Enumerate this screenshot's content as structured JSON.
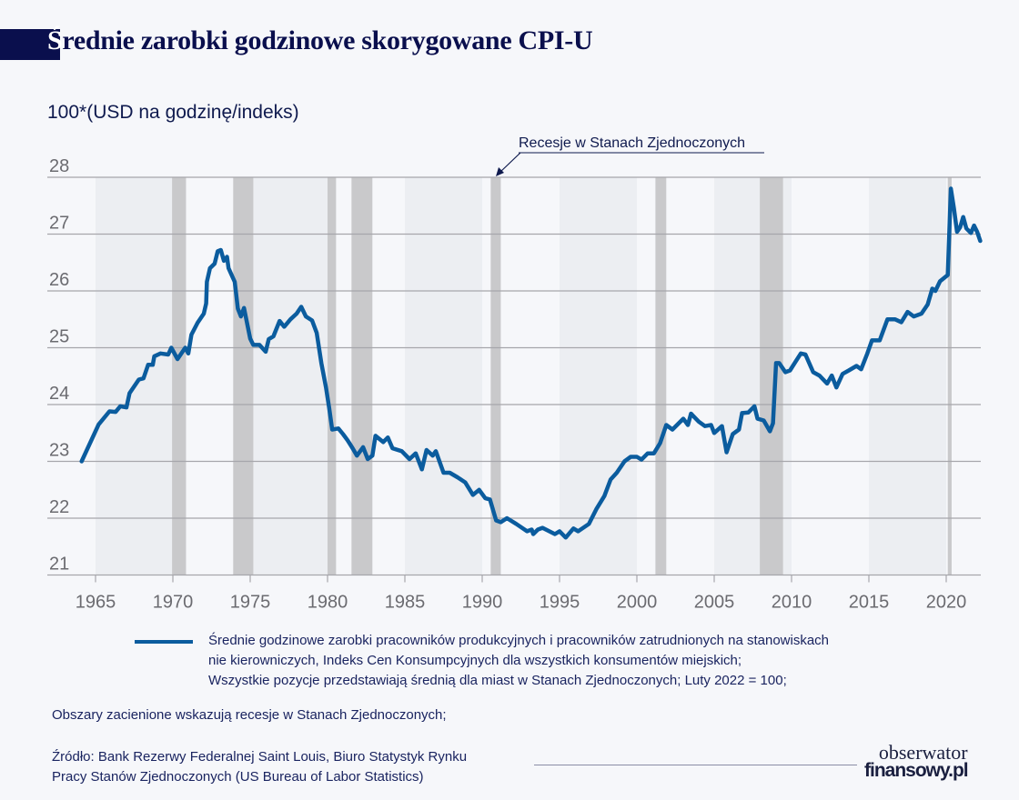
{
  "header": {
    "title_first": "Ś",
    "title_rest": "rednie zarobki godzinowe skorygowane CPI-U",
    "unit_label": "100*(USD na godzinę/indeks)"
  },
  "annotation": {
    "text": "Recesje w Stanach Zjednoczonych"
  },
  "legend": {
    "series_label_line1": "Średnie godzinowe zarobki pracowników produkcyjnych i pracowników zatrudnionych na stanowiskach",
    "series_label_line2": "nie kierowniczych, Indeks Cen Konsumpcyjnych  dla wszystkich konsumentów miejskich;",
    "series_label_line3": "Wszystkie pozycje przedstawiają średnią dla miast w Stanach Zjednoczonych; Luty 2022 = 100;"
  },
  "footer": {
    "note": "Obszary zacienione wskazują recesje w Stanach Zjednoczonych;",
    "source_line1": "Źródło: Bank Rezerwy Federalnej Saint Louis, Biuro Statystyk Rynku",
    "source_line2": "Pracy Stanów Zjednoczonych (US Bureau of Labor Statistics)",
    "logo_line1": "obserwator",
    "logo_line2": "finansowy.pl"
  },
  "colors": {
    "line": "#0b5c9e",
    "recession": "#c9c9cb",
    "band": "#eceef2",
    "title": "#0a0f4d"
  },
  "chart_data": {
    "type": "line",
    "title": "Średnie zarobki godzinowe skorygowane CPI-U",
    "ylabel": "100*(USD na godzinę/indeks)",
    "ylim": [
      21,
      28
    ],
    "yticks": [
      "21",
      "22",
      "23",
      "24",
      "25",
      "26",
      "27",
      "28"
    ],
    "xticks": [
      "1965",
      "1970",
      "1975",
      "1980",
      "1985",
      "1990",
      "1995",
      "2000",
      "2005",
      "2010",
      "2015",
      "2020"
    ],
    "grid": "horizontal",
    "recessions": [
      [
        1969.95,
        1970.85
      ],
      [
        1973.9,
        1975.2
      ],
      [
        1980.0,
        1980.55
      ],
      [
        1981.55,
        1982.9
      ],
      [
        1990.55,
        1991.2
      ],
      [
        2001.2,
        2001.9
      ],
      [
        2007.95,
        2009.45
      ],
      [
        2020.1,
        2020.35
      ]
    ],
    "series": [
      {
        "name": "Średnie godzinowe zarobki pracowników produkcyjnych i pracowników zatrudnionych na stanowiskach nie kierowniczych, Indeks Cen Konsumpcyjnych dla wszystkich konsumentów miejskich",
        "x": [
          1964.1,
          1965.2,
          1965.9,
          1966.3,
          1966.6,
          1967.0,
          1967.2,
          1967.8,
          1968.1,
          1968.4,
          1968.7,
          1968.8,
          1969.2,
          1969.7,
          1969.9,
          1970.3,
          1970.8,
          1971.0,
          1971.2,
          1971.6,
          1972.0,
          1972.15,
          1972.2,
          1972.4,
          1972.7,
          1972.9,
          1973.1,
          1973.3,
          1973.5,
          1973.6,
          1974.0,
          1974.2,
          1974.4,
          1974.6,
          1975.0,
          1975.2,
          1975.6,
          1976.0,
          1976.2,
          1976.5,
          1976.9,
          1977.2,
          1977.6,
          1978.0,
          1978.3,
          1978.6,
          1979.0,
          1979.3,
          1979.6,
          1979.9,
          1980.1,
          1980.3,
          1980.7,
          1981.0,
          1981.3,
          1981.6,
          1981.9,
          1982.3,
          1982.6,
          1982.9,
          1983.1,
          1983.6,
          1983.9,
          1984.2,
          1984.8,
          1985.3,
          1985.7,
          1986.1,
          1986.4,
          1986.8,
          1987.0,
          1987.5,
          1987.9,
          1988.4,
          1988.9,
          1989.4,
          1989.8,
          1990.2,
          1990.5,
          1990.9,
          1991.2,
          1991.6,
          1992.2,
          1992.9,
          1993.2,
          1993.3,
          1993.6,
          1993.9,
          1994.7,
          1995.0,
          1995.4,
          1995.9,
          1996.2,
          1996.9,
          1997.4,
          1997.9,
          1998.3,
          1998.7,
          1999.2,
          1999.6,
          2000.0,
          2000.3,
          2000.7,
          2001.1,
          2001.5,
          2001.9,
          2002.3,
          2003.0,
          2003.3,
          2003.5,
          2004.0,
          2004.4,
          2004.8,
          2005.0,
          2005.5,
          2005.8,
          2006.2,
          2006.6,
          2006.8,
          2007.2,
          2007.6,
          2007.8,
          2008.2,
          2008.6,
          2008.8,
          2009.0,
          2009.2,
          2009.6,
          2009.9,
          2010.2,
          2010.6,
          2010.9,
          2011.4,
          2011.8,
          2012.3,
          2012.6,
          2012.9,
          2013.3,
          2013.7,
          2014.2,
          2014.5,
          2014.9,
          2015.2,
          2015.7,
          2016.2,
          2016.7,
          2017.1,
          2017.5,
          2017.9,
          2018.4,
          2018.8,
          2019.1,
          2019.3,
          2019.6,
          2020.1,
          2020.3,
          2020.5,
          2020.7,
          2020.9,
          2021.1,
          2021.3,
          2021.6,
          2021.8,
          2022.0,
          2022.2
        ],
        "y": [
          23.0,
          23.65,
          23.88,
          23.87,
          23.97,
          23.95,
          24.2,
          24.44,
          24.46,
          24.7,
          24.7,
          24.85,
          24.9,
          24.88,
          25.0,
          24.8,
          25.0,
          24.9,
          25.23,
          25.44,
          25.6,
          25.78,
          26.16,
          26.4,
          26.48,
          26.7,
          26.72,
          26.53,
          26.6,
          26.4,
          26.16,
          25.69,
          25.55,
          25.7,
          25.16,
          25.05,
          25.05,
          24.93,
          25.15,
          25.2,
          25.47,
          25.37,
          25.5,
          25.6,
          25.72,
          25.55,
          25.48,
          25.26,
          24.73,
          24.3,
          23.95,
          23.56,
          23.58,
          23.48,
          23.37,
          23.24,
          23.1,
          23.25,
          23.04,
          23.1,
          23.45,
          23.34,
          23.42,
          23.23,
          23.18,
          23.04,
          23.14,
          22.86,
          23.2,
          23.1,
          23.18,
          22.8,
          22.8,
          22.72,
          22.63,
          22.41,
          22.5,
          22.35,
          22.33,
          21.96,
          21.93,
          22.0,
          21.9,
          21.77,
          21.8,
          21.72,
          21.8,
          21.83,
          21.72,
          21.77,
          21.66,
          21.82,
          21.77,
          21.9,
          22.17,
          22.39,
          22.68,
          22.8,
          23.0,
          23.08,
          23.08,
          23.03,
          23.14,
          23.14,
          23.32,
          23.64,
          23.56,
          23.75,
          23.64,
          23.84,
          23.7,
          23.62,
          23.64,
          23.5,
          23.62,
          23.16,
          23.48,
          23.56,
          23.85,
          23.86,
          23.97,
          23.75,
          23.72,
          23.53,
          23.67,
          24.73,
          24.73,
          24.57,
          24.6,
          24.73,
          24.9,
          24.88,
          24.57,
          24.51,
          24.37,
          24.51,
          24.3,
          24.54,
          24.6,
          24.68,
          24.62,
          24.9,
          25.13,
          25.13,
          25.5,
          25.5,
          25.45,
          25.63,
          25.55,
          25.6,
          25.76,
          26.04,
          26.0,
          26.17,
          26.28,
          27.8,
          27.45,
          27.04,
          27.12,
          27.3,
          27.1,
          27.02,
          27.15,
          27.04,
          26.88
        ]
      }
    ]
  }
}
